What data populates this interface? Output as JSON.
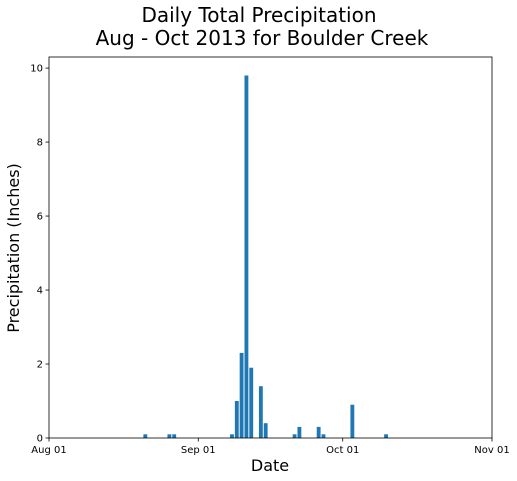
{
  "chart_data": {
    "type": "bar",
    "title_lines": [
      "Daily Total Precipitation",
      "Aug - Oct 2013 for Boulder Creek"
    ],
    "xlabel": "Date",
    "ylabel": "Precipitation (Inches)",
    "xlim": [
      "2013-08-01",
      "2013-11-01"
    ],
    "ylim": [
      0,
      10.3
    ],
    "x_ticks": [
      {
        "date": "2013-08-01",
        "label": "Aug 01"
      },
      {
        "date": "2013-09-01",
        "label": "Sep 01"
      },
      {
        "date": "2013-10-01",
        "label": "Oct 01"
      },
      {
        "date": "2013-11-01",
        "label": "Nov 01"
      }
    ],
    "y_ticks": [
      0,
      2,
      4,
      6,
      8,
      10
    ],
    "grid": false,
    "legend": "none",
    "bar_color": "#1f77b4",
    "series": [
      {
        "x": [
          "2013-08-21",
          "2013-08-26",
          "2013-08-27",
          "2013-09-08",
          "2013-09-09",
          "2013-09-10",
          "2013-09-11",
          "2013-09-12",
          "2013-09-14",
          "2013-09-15",
          "2013-09-21",
          "2013-09-22",
          "2013-09-26",
          "2013-09-27",
          "2013-10-03",
          "2013-10-10"
        ],
        "values": [
          0.1,
          0.1,
          0.1,
          0.1,
          1.0,
          2.3,
          9.8,
          1.9,
          1.4,
          0.4,
          0.1,
          0.3,
          0.3,
          0.1,
          0.9,
          0.1
        ]
      }
    ]
  }
}
